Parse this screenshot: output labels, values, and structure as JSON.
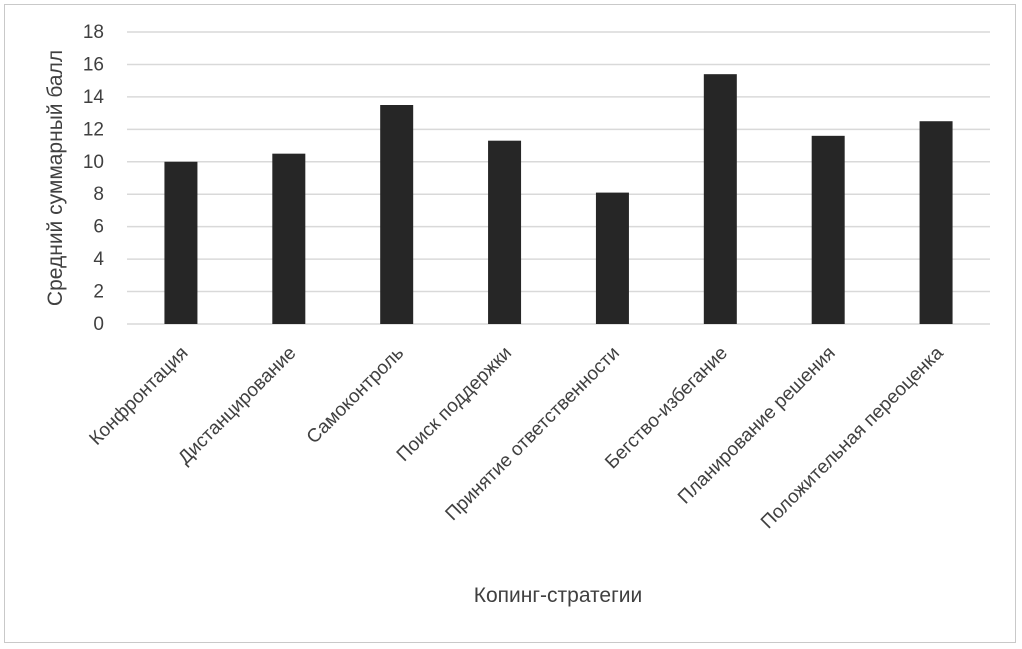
{
  "chart_data": {
    "type": "bar",
    "title": "",
    "xlabel": "Копинг-стратегии",
    "ylabel": "Средний  суммарный балл",
    "categories": [
      "Конфронтация",
      "Дистанцирование",
      "Самоконтроль",
      "Поиск поддержки",
      "Принятие ответственности",
      "Бегство-избегание",
      "Планирование решения",
      "Положительная переоценка"
    ],
    "values": [
      10.0,
      10.5,
      13.5,
      11.3,
      8.1,
      15.4,
      11.6,
      12.5
    ],
    "ylim": [
      0,
      18
    ],
    "yticks": [
      0,
      2,
      4,
      6,
      8,
      10,
      12,
      14,
      16,
      18
    ],
    "grid": true,
    "legend": "none",
    "colors": {
      "bar": "#262626",
      "grid": "#d9d9d9",
      "text": "#404040",
      "frame": "#c9c9c9"
    }
  }
}
